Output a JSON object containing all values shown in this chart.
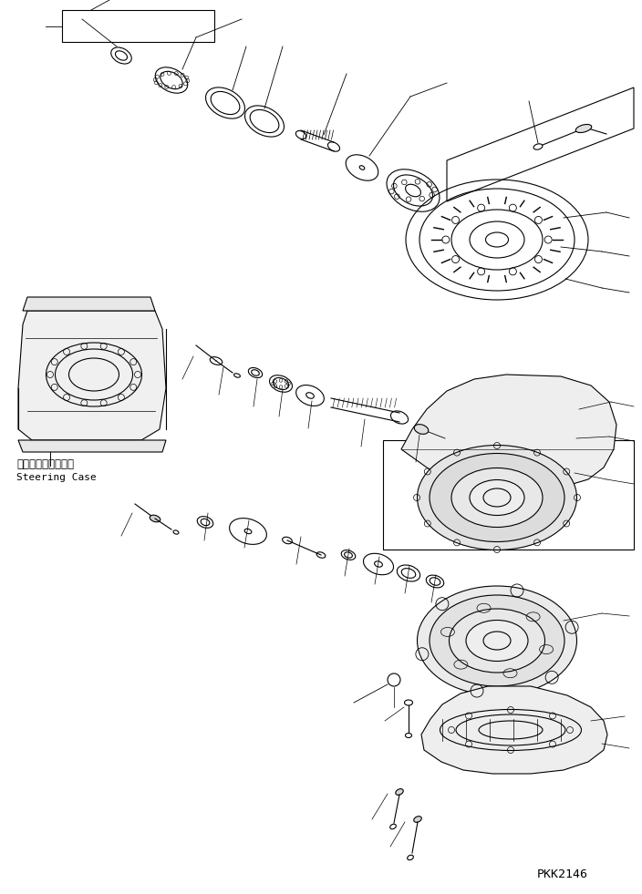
{
  "bg_color": "#ffffff",
  "line_color": "#000000",
  "watermark": "PKK2146",
  "label_jp": "ステアリングケース",
  "label_en": "Steering Case",
  "fig_width": 7.04,
  "fig_height": 9.81,
  "dpi": 100
}
